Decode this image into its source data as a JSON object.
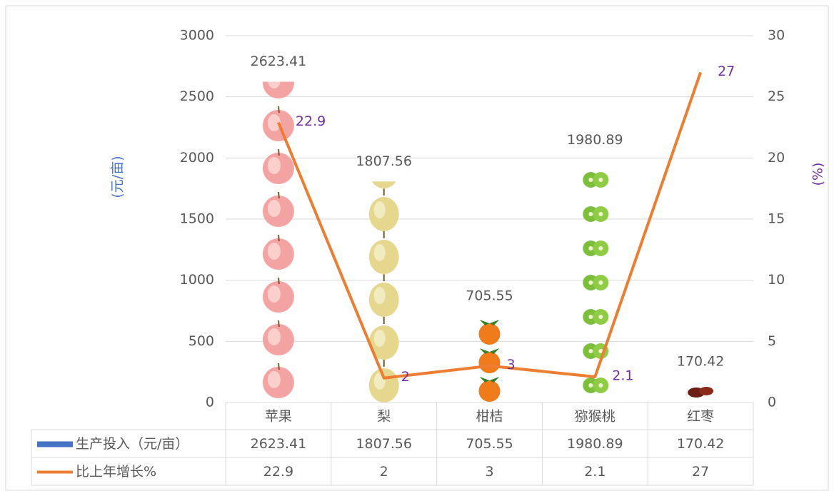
{
  "chart_data": {
    "type": "bar",
    "categories": [
      "苹果",
      "梨",
      "柑桔",
      "猕猴桃",
      "红枣"
    ],
    "series": [
      {
        "name": "生产投入（元/亩）",
        "color": "#4472c4",
        "values": [
          2623.41,
          1807.56,
          705.55,
          1980.89,
          170.42
        ]
      },
      {
        "name": "比上年增长%",
        "type": "line",
        "axis": "y2",
        "color": "#ed7d31",
        "label_color": "#7030a0",
        "values": [
          22.9,
          2,
          3,
          2.1,
          27
        ]
      }
    ],
    "ylim": [
      0,
      3000
    ],
    "yticks": [
      0,
      500,
      1000,
      1500,
      2000,
      2500,
      3000
    ],
    "y2lim": [
      0,
      30
    ],
    "y2ticks": [
      0,
      5,
      10,
      15,
      20,
      25,
      30
    ],
    "ylabel": "(元/亩)",
    "y2label": "(%)",
    "grid": true,
    "data_table": true
  }
}
